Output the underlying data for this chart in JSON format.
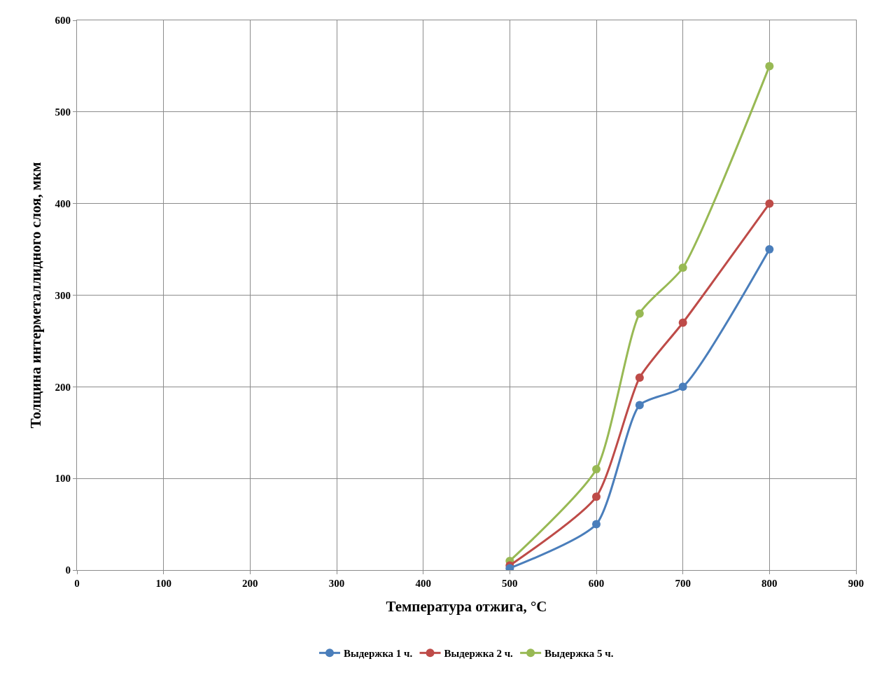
{
  "chart_data": {
    "type": "line",
    "xlabel": "Температура отжига, °C",
    "ylabel": "Толщина интерметаллидного слоя, мкм",
    "x": [
      500,
      600,
      650,
      700,
      800
    ],
    "series": [
      {
        "name": "Выдержка 1 ч.",
        "color": "#4a7ebb",
        "values": [
          2,
          50,
          180,
          200,
          350
        ]
      },
      {
        "name": "Выдержка 2 ч.",
        "color": "#be4b48",
        "values": [
          5,
          80,
          210,
          270,
          400
        ]
      },
      {
        "name": "Выдержка 5 ч.",
        "color": "#98b954",
        "values": [
          10,
          110,
          280,
          330,
          550
        ]
      }
    ],
    "xlim": [
      0,
      900
    ],
    "xticks": [
      0,
      100,
      200,
      300,
      400,
      500,
      600,
      700,
      800,
      900
    ],
    "ylim": [
      0,
      600
    ],
    "yticks": [
      0,
      100,
      200,
      300,
      400,
      500,
      600
    ],
    "grid": true,
    "legend": "bottom",
    "marker": "circle",
    "line_style": "solid"
  }
}
